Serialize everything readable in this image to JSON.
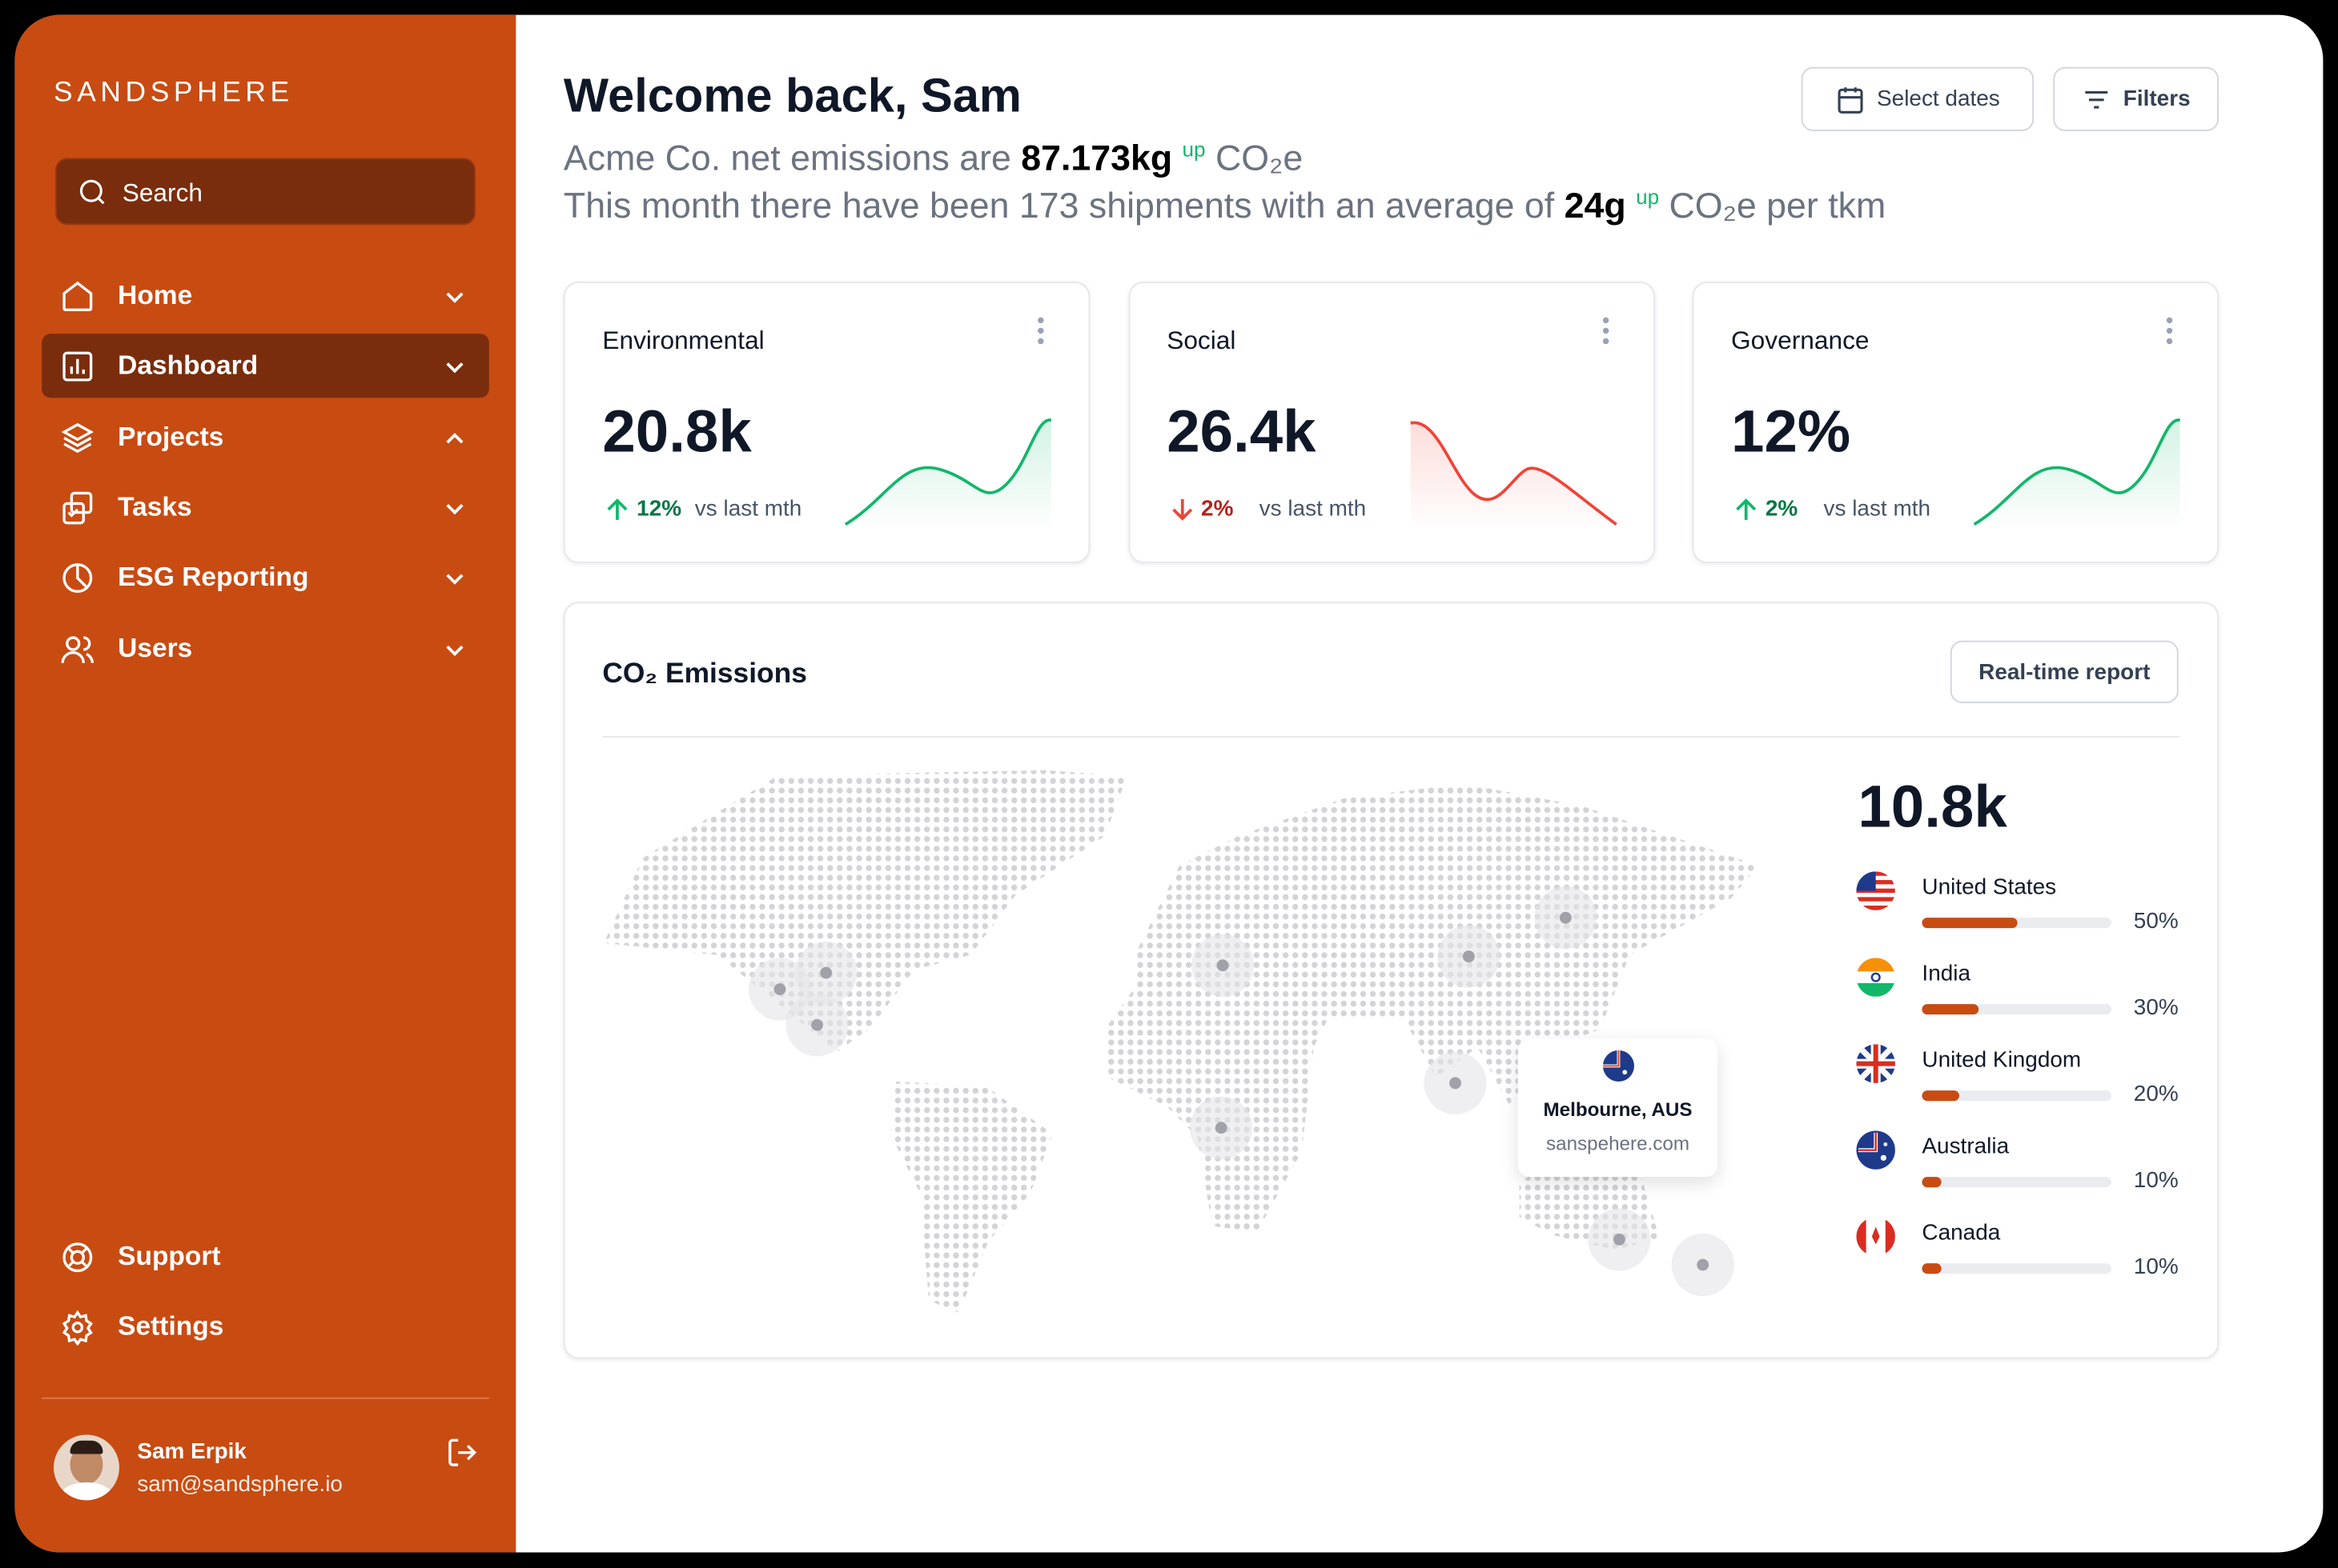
{
  "brand": "SANDSPHERE",
  "search": "Search",
  "nav": [
    {
      "label": "Home"
    },
    {
      "label": "Dashboard"
    },
    {
      "label": "Projects"
    },
    {
      "label": "Tasks"
    },
    {
      "label": "ESG Reporting"
    },
    {
      "label": "Users"
    }
  ],
  "footer_nav": [
    {
      "label": "Support"
    },
    {
      "label": "Settings"
    }
  ],
  "user": {
    "name": "Sam Erpik",
    "email": "sam@sandsphere.io"
  },
  "header": {
    "title": "Welcome back, Sam",
    "line1": {
      "prefix": "Acme Co. net emissions are",
      "value": "87.173kg",
      "trend": "up",
      "unit": "CO₂e"
    },
    "line2": {
      "prefix": "This month there have been 173 shipments with an average of",
      "value": "24g",
      "trend": "up",
      "unit": "CO₂e per tkm"
    }
  },
  "buttons": [
    "Select dates",
    "Filters"
  ],
  "cards": [
    {
      "title": "Environmental",
      "value": "20.8k",
      "change": "12%",
      "direction": "up",
      "note": "vs last mth"
    },
    {
      "title": "Social",
      "value": "26.4k",
      "change": "2%",
      "direction": "down",
      "note": "vs last mth"
    },
    {
      "title": "Governance",
      "value": "12%",
      "change": "2%",
      "direction": "up",
      "note": "vs last mth"
    }
  ],
  "emissions": {
    "title": "CO₂ Emissions",
    "button": "Real-time report",
    "total": "10.8k",
    "tooltip": {
      "city": "Melbourne, AUS",
      "site": "sanspehere.com"
    },
    "countries": [
      {
        "name": "United States",
        "percent": {
          "value": 50,
          "label": "50%"
        }
      },
      {
        "name": "India",
        "percent": {
          "value": 30,
          "label": "30%"
        }
      },
      {
        "name": "United Kingdom",
        "percent": {
          "value": 20,
          "label": "20%"
        }
      },
      {
        "name": "Australia",
        "percent": {
          "value": 10,
          "label": "10%"
        }
      },
      {
        "name": "Canada",
        "percent": {
          "value": 10,
          "label": "10%"
        }
      }
    ]
  }
}
